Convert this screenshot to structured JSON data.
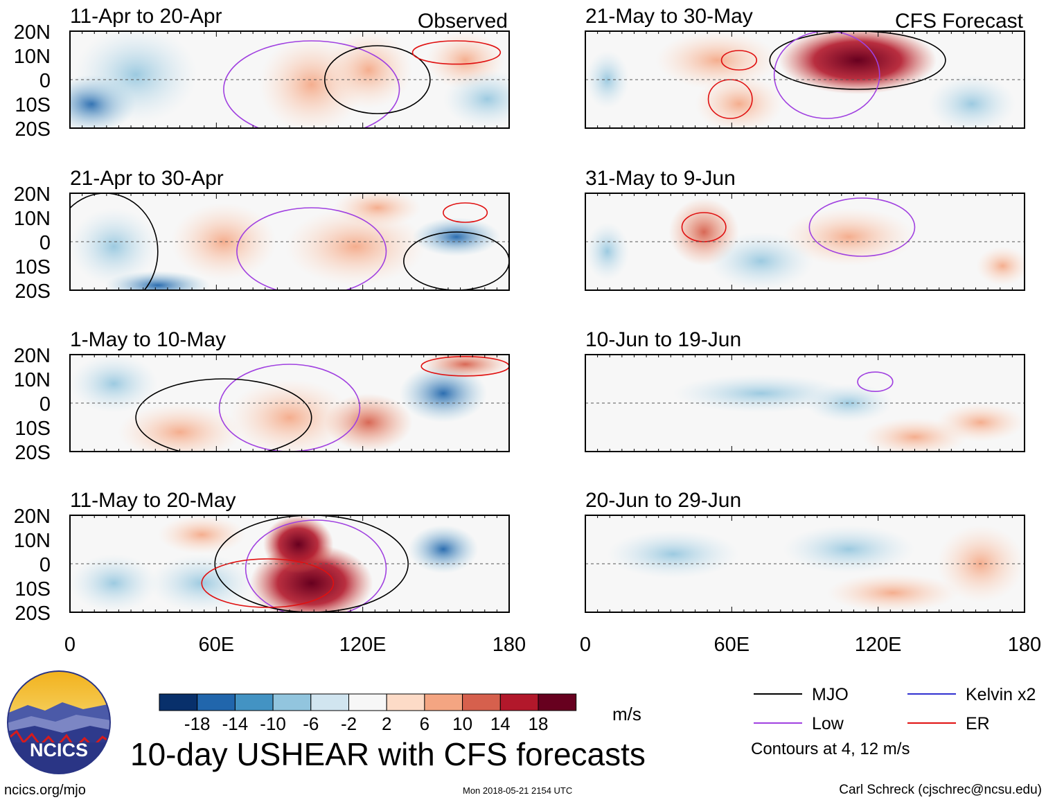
{
  "title": "10-day USHEAR with CFS forecasts",
  "footer": {
    "url": "ncics.org/mjo",
    "date": "Mon 2018-05-21 2154 UTC",
    "author": "Carl Schreck (cjschrec@ncsu.edu)"
  },
  "logo": {
    "text": "NCICS",
    "icon": "ncics-logo-icon"
  },
  "colorbar": {
    "units": "m/s",
    "tick_labels": [
      "-18",
      "-14",
      "-10",
      "-6",
      "-2",
      "2",
      "6",
      "10",
      "14",
      "18"
    ],
    "colors": [
      "#08306b",
      "#2166ac",
      "#4393c3",
      "#92c5de",
      "#d1e5f0",
      "#f7f7f7",
      "#fddbc7",
      "#f4a582",
      "#d6604d",
      "#b2182b",
      "#67001f"
    ]
  },
  "legend": {
    "items": [
      {
        "label": "MJO",
        "color": "#000000"
      },
      {
        "label": "Kelvin x2",
        "color": "#3030d0"
      },
      {
        "label": "Low",
        "color": "#a040e0"
      },
      {
        "label": "ER",
        "color": "#e01010"
      }
    ],
    "note": "Contours at 4, 12 m/s"
  },
  "chart_data": [
    {
      "type": "heatmap",
      "panel": "left-1",
      "title": "11-Apr to 20-Apr",
      "tag": "Observed",
      "xlim": [
        0,
        180
      ],
      "ylim": [
        -20,
        20
      ],
      "yticks": [
        "20N",
        "10N",
        "0",
        "10S",
        "20S"
      ],
      "xticks": []
    },
    {
      "type": "heatmap",
      "panel": "left-2",
      "title": "21-Apr to 30-Apr",
      "tag": "",
      "xlim": [
        0,
        180
      ],
      "ylim": [
        -20,
        20
      ],
      "yticks": [
        "20N",
        "10N",
        "0",
        "10S",
        "20S"
      ],
      "xticks": []
    },
    {
      "type": "heatmap",
      "panel": "left-3",
      "title": "1-May to 10-May",
      "tag": "",
      "xlim": [
        0,
        180
      ],
      "ylim": [
        -20,
        20
      ],
      "yticks": [
        "20N",
        "10N",
        "0",
        "10S",
        "20S"
      ],
      "xticks": []
    },
    {
      "type": "heatmap",
      "panel": "left-4",
      "title": "11-May to 20-May",
      "tag": "",
      "xlim": [
        0,
        180
      ],
      "ylim": [
        -20,
        20
      ],
      "yticks": [
        "20N",
        "10N",
        "0",
        "10S",
        "20S"
      ],
      "xticks": [
        "0",
        "60E",
        "120E",
        "180"
      ]
    },
    {
      "type": "heatmap",
      "panel": "right-1",
      "title": "21-May to 30-May",
      "tag": "CFS Forecast",
      "xlim": [
        0,
        180
      ],
      "ylim": [
        -20,
        20
      ],
      "yticks": [],
      "xticks": []
    },
    {
      "type": "heatmap",
      "panel": "right-2",
      "title": "31-May to 9-Jun",
      "tag": "",
      "xlim": [
        0,
        180
      ],
      "ylim": [
        -20,
        20
      ],
      "yticks": [],
      "xticks": []
    },
    {
      "type": "heatmap",
      "panel": "right-3",
      "title": "10-Jun to 19-Jun",
      "tag": "",
      "xlim": [
        0,
        180
      ],
      "ylim": [
        -20,
        20
      ],
      "yticks": [],
      "xticks": []
    },
    {
      "type": "heatmap",
      "panel": "right-4",
      "title": "20-Jun to 29-Jun",
      "tag": "",
      "xlim": [
        0,
        180
      ],
      "ylim": [
        -20,
        20
      ],
      "yticks": [],
      "xticks": [
        "0",
        "60E",
        "120E",
        "180"
      ]
    }
  ]
}
